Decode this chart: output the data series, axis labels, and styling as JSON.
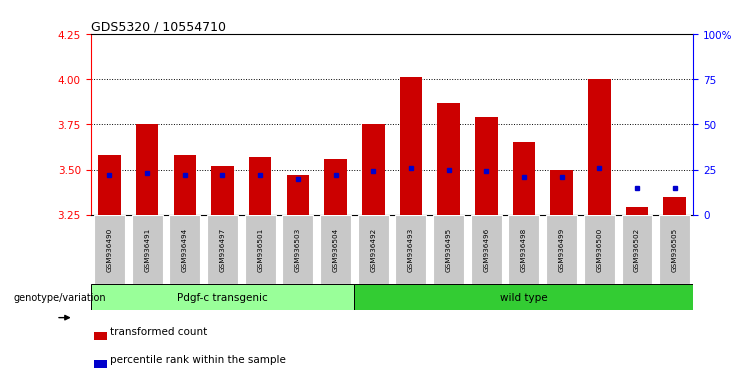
{
  "title": "GDS5320 / 10554710",
  "samples": [
    "GSM936490",
    "GSM936491",
    "GSM936494",
    "GSM936497",
    "GSM936501",
    "GSM936503",
    "GSM936504",
    "GSM936492",
    "GSM936493",
    "GSM936495",
    "GSM936496",
    "GSM936498",
    "GSM936499",
    "GSM936500",
    "GSM936502",
    "GSM936505"
  ],
  "transformed_count": [
    3.58,
    3.75,
    3.58,
    3.52,
    3.57,
    3.47,
    3.56,
    3.75,
    4.01,
    3.87,
    3.79,
    3.65,
    3.5,
    4.0,
    3.29,
    3.35
  ],
  "percentile_rank": [
    22,
    23,
    22,
    22,
    22,
    20,
    22,
    24,
    26,
    25,
    24,
    21,
    21,
    26,
    15,
    15
  ],
  "group1_label": "Pdgf-c transgenic",
  "group1_count": 7,
  "group2_label": "wild type",
  "group2_count": 9,
  "ylim_left": [
    3.25,
    4.25
  ],
  "ylim_right": [
    0,
    100
  ],
  "yticks_left": [
    3.25,
    3.5,
    3.75,
    4.0,
    4.25
  ],
  "yticks_right": [
    0,
    25,
    50,
    75,
    100
  ],
  "bar_color": "#cc0000",
  "percentile_color": "#0000cc",
  "bar_baseline": 3.25,
  "legend_label1": "transformed count",
  "legend_label2": "percentile rank within the sample",
  "genotype_label": "genotype/variation",
  "group1_color": "#99ff99",
  "group2_color": "#33cc33",
  "tick_bg_color": "#c8c8c8",
  "bg_color": "#ffffff"
}
